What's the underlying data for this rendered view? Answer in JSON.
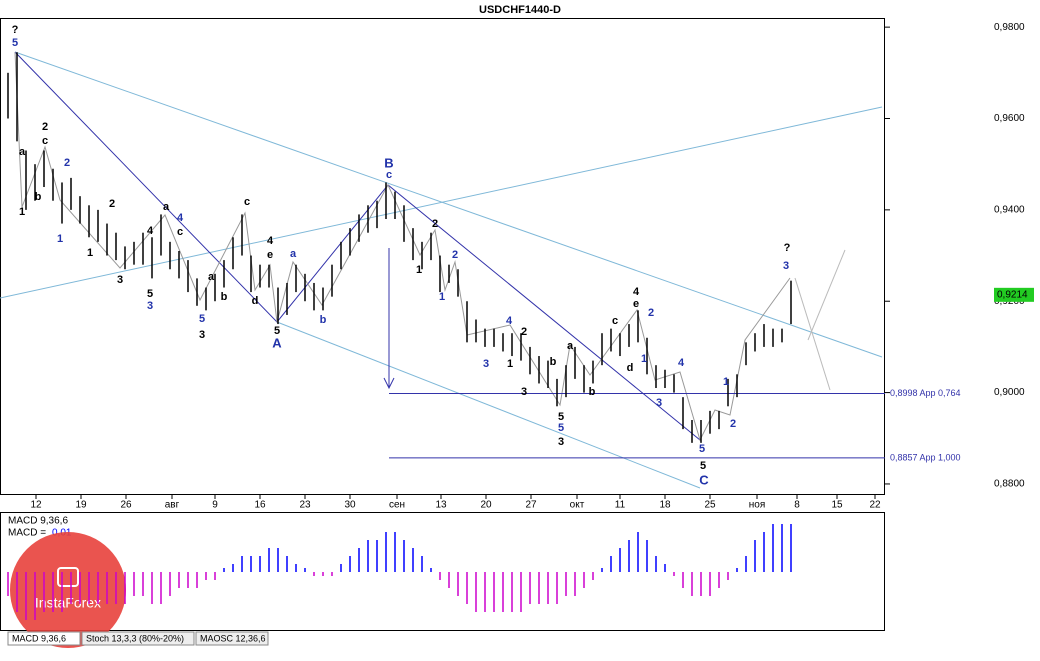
{
  "chart_data": [
    {
      "type": "ohlc",
      "title": "USDCHF1440-D",
      "xticks": [
        "12",
        "19",
        "26",
        "авг",
        "9",
        "16",
        "23",
        "30",
        "сен",
        "13",
        "20",
        "27",
        "окт",
        "11",
        "18",
        "25",
        "ноя",
        "8",
        "15",
        "22"
      ],
      "high": [
        0.97,
        0.9745,
        0.953,
        0.95,
        0.953,
        0.949,
        0.946,
        0.947,
        0.943,
        0.941,
        0.94,
        0.937,
        0.935,
        0.932,
        0.933,
        0.935,
        0.934,
        0.939,
        0.933,
        0.931,
        0.929,
        0.925,
        0.923,
        0.926,
        0.929,
        0.934,
        0.939,
        0.93,
        0.928,
        0.928,
        0.923,
        0.924,
        0.928,
        0.926,
        0.924,
        0.923,
        0.928,
        0.933,
        0.936,
        0.939,
        0.941,
        0.942,
        0.946,
        0.944,
        0.941,
        0.936,
        0.933,
        0.935,
        0.93,
        0.928,
        0.927,
        0.92,
        0.916,
        0.914,
        0.914,
        0.913,
        0.913,
        0.913,
        0.91,
        0.908,
        0.907,
        0.903,
        0.906,
        0.91,
        0.906,
        0.907,
        0.913,
        0.914,
        0.913,
        0.915,
        0.918,
        0.912,
        0.906,
        0.905,
        0.904,
        0.899,
        0.894,
        0.894,
        0.896,
        0.896,
        0.903,
        0.904,
        0.911,
        0.913,
        0.915,
        0.914,
        0.914,
        0.9245
      ],
      "low": [
        0.96,
        0.955,
        0.94,
        0.942,
        0.945,
        0.942,
        0.937,
        0.94,
        0.937,
        0.934,
        0.933,
        0.93,
        0.929,
        0.927,
        0.928,
        0.928,
        0.925,
        0.93,
        0.927,
        0.925,
        0.922,
        0.919,
        0.918,
        0.92,
        0.923,
        0.927,
        0.93,
        0.922,
        0.923,
        0.923,
        0.915,
        0.917,
        0.922,
        0.92,
        0.918,
        0.918,
        0.921,
        0.927,
        0.93,
        0.933,
        0.935,
        0.936,
        0.938,
        0.938,
        0.933,
        0.929,
        0.927,
        0.929,
        0.922,
        0.924,
        0.921,
        0.911,
        0.911,
        0.91,
        0.91,
        0.909,
        0.908,
        0.907,
        0.904,
        0.902,
        0.901,
        0.897,
        0.899,
        0.903,
        0.9,
        0.902,
        0.906,
        0.909,
        0.908,
        0.91,
        0.911,
        0.904,
        0.901,
        0.901,
        0.9,
        0.892,
        0.889,
        0.889,
        0.891,
        0.892,
        0.897,
        0.899,
        0.906,
        0.909,
        0.91,
        0.91,
        0.911,
        0.915
      ],
      "color": "#000000",
      "ylim": [
        0.8778,
        0.982
      ],
      "yticks": [
        {
          "value": 0.98,
          "label": "0,9800"
        },
        {
          "value": 0.96,
          "label": "0,9600"
        },
        {
          "value": 0.94,
          "label": "0,9400"
        },
        {
          "value": 0.92,
          "label": "0,9200"
        },
        {
          "value": 0.9,
          "label": "0,9000"
        },
        {
          "value": 0.88,
          "label": "0,8800"
        }
      ],
      "last_price": {
        "value": 0.9214,
        "label": "0,9214"
      },
      "levels": [
        {
          "value": 0.8998,
          "label": "0,8998 App 0,764"
        },
        {
          "value": 0.8857,
          "label": "0,8857 App 1,000"
        }
      ],
      "wave_labels": [
        "?",
        "5",
        "a",
        "1",
        "2",
        "c",
        "b",
        "2",
        "1",
        "2",
        "1",
        "3",
        "4",
        "a",
        "4",
        "c",
        "5",
        "3",
        "a",
        "5",
        "b",
        "3",
        "c",
        "4",
        "e",
        "d",
        "a",
        "5",
        "A",
        "b",
        "B",
        "c",
        "2",
        "2",
        "1",
        "1",
        "4",
        "2",
        "3",
        "1",
        "3",
        "b",
        "a",
        "5",
        "5",
        "3",
        "b",
        "c",
        "4",
        "e",
        "2",
        "1",
        "d",
        "4",
        "3",
        "1",
        "2",
        "5",
        "5",
        "C",
        "?",
        "3"
      ]
    },
    {
      "type": "bar",
      "title": "MACD 9,36,6",
      "value_title": "MACD =",
      "current": {
        "value": 0.006,
        "label": "0,01"
      },
      "values": [
        -0.003,
        -0.005,
        -0.006,
        -0.006,
        -0.005,
        -0.005,
        -0.005,
        -0.004,
        -0.004,
        -0.004,
        -0.004,
        -0.004,
        -0.004,
        -0.004,
        -0.003,
        -0.003,
        -0.004,
        -0.004,
        -0.003,
        -0.002,
        -0.002,
        -0.002,
        -0.001,
        -0.001,
        0.0005,
        0.001,
        0.002,
        0.002,
        0.002,
        0.003,
        0.003,
        0.002,
        0.001,
        0.0005,
        -0.0005,
        -0.0005,
        -0.0005,
        0.001,
        0.002,
        0.003,
        0.004,
        0.004,
        0.005,
        0.005,
        0.004,
        0.003,
        0.002,
        0.0005,
        -0.001,
        -0.002,
        -0.003,
        -0.004,
        -0.005,
        -0.005,
        -0.005,
        -0.005,
        -0.005,
        -0.005,
        -0.004,
        -0.004,
        -0.004,
        -0.004,
        -0.003,
        -0.003,
        -0.002,
        -0.001,
        0.0005,
        0.002,
        0.003,
        0.004,
        0.005,
        0.004,
        0.002,
        0.001,
        -0.0005,
        -0.002,
        -0.003,
        -0.003,
        -0.003,
        -0.002,
        -0.001,
        0.0005,
        0.002,
        0.004,
        0.005,
        0.006,
        0.006,
        0.006
      ],
      "colors": {
        "positive": "#0000ff",
        "negative": "#cc00cc"
      },
      "ylim": [
        -0.0065,
        0.0065
      ]
    }
  ],
  "tabs": [
    "MACD 9,36,6",
    "Stoch 13,3,3 (80%-20%)",
    "MAOSC 12,36,6"
  ],
  "logo": "InstaForex"
}
